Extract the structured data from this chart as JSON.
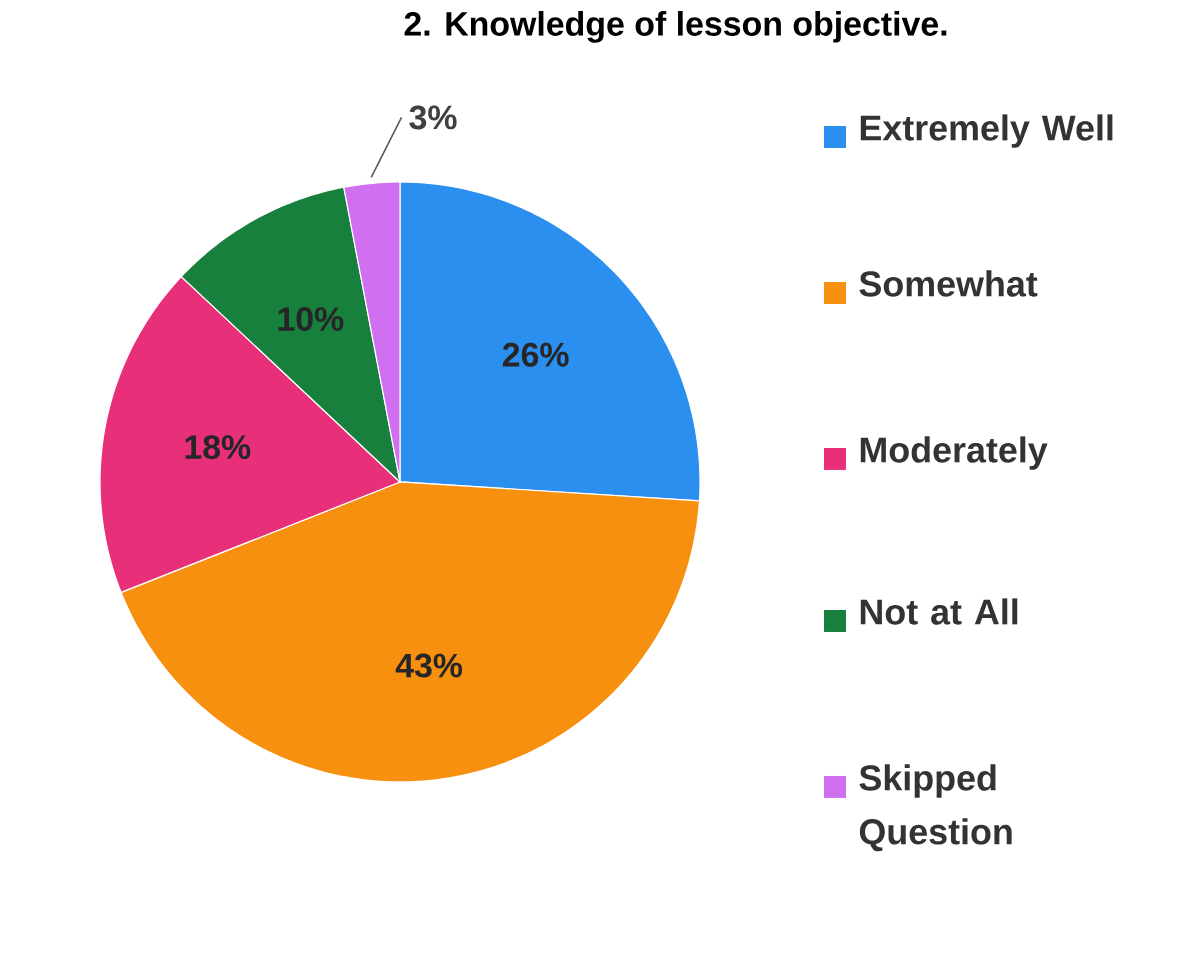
{
  "chart_data": {
    "type": "pie",
    "title": "2. Knowledge of lesson objective.",
    "categories": [
      "Extremely Well",
      "Somewhat",
      "Moderately",
      "Not at All",
      "Skipped Question"
    ],
    "values": [
      26,
      43,
      18,
      10,
      3
    ],
    "value_labels": [
      "26%",
      "43%",
      "18%",
      "10%",
      "3%"
    ],
    "colors": [
      "#2b8ff0",
      "#f7900f",
      "#e8307a",
      "#17803d",
      "#d070f0"
    ],
    "legend": "right"
  }
}
